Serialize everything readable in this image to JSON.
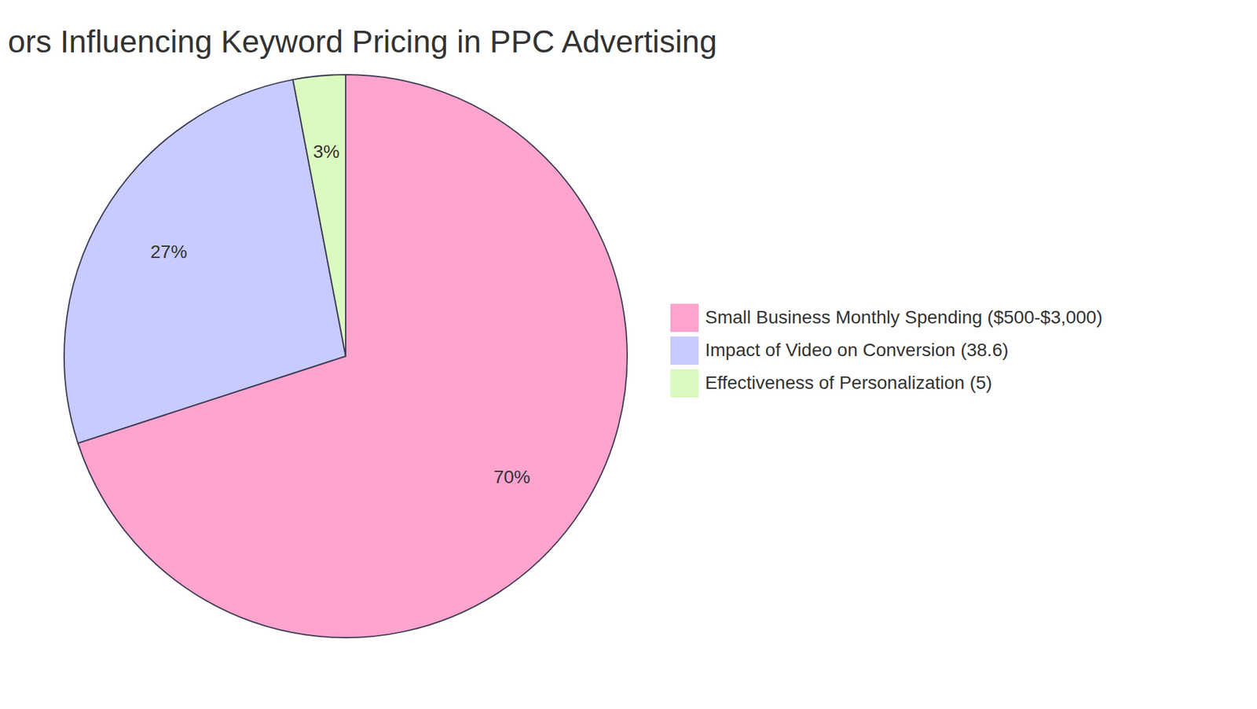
{
  "chart_data": {
    "type": "pie",
    "title": "ors Influencing Keyword Pricing in PPC Advertising",
    "categories": [
      "Small Business Monthly Spending ($500-$3,000)",
      "Impact of Video on Conversion (38.6)",
      "Effectiveness of Personalization (5)"
    ],
    "values": [
      70,
      27,
      3
    ],
    "value_labels": [
      "70%",
      "27%",
      "3%"
    ],
    "colors": [
      "#FFA3CF",
      "#C7CBFF",
      "#DBFABF"
    ],
    "data_labels": true,
    "legend": "right"
  }
}
